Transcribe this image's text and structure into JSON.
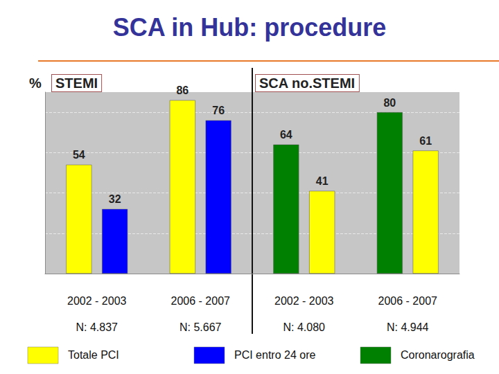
{
  "chart_data": {
    "type": "bar",
    "title": "SCA in Hub: procedure",
    "ylabel": "%",
    "categories": [
      "2002 - 2003",
      "2006 - 2007",
      "2002 - 2003",
      "2006 - 2007"
    ],
    "category_groups": [
      "STEMI",
      "STEMI",
      "SCA no.STEMI",
      "SCA no.STEMI"
    ],
    "n_labels": [
      "N: 4.837",
      "N: 5.667",
      "N: 4.080",
      "N: 4.944"
    ],
    "series": [
      {
        "name": "Coronarografia",
        "color": "#008000",
        "values": [
          null,
          null,
          64,
          80
        ]
      },
      {
        "name": "Totale PCI",
        "color": "#ffff00",
        "values": [
          54,
          86,
          41,
          61
        ]
      },
      {
        "name": "PCI entro 24 ore",
        "color": "#0000ff",
        "values": [
          32,
          76,
          null,
          null
        ]
      }
    ],
    "ylim": [
      0,
      90
    ],
    "yticks": [
      0,
      20,
      40,
      60,
      80
    ],
    "grid": true,
    "data_labels": true,
    "tick_labels": "x"
  }
}
